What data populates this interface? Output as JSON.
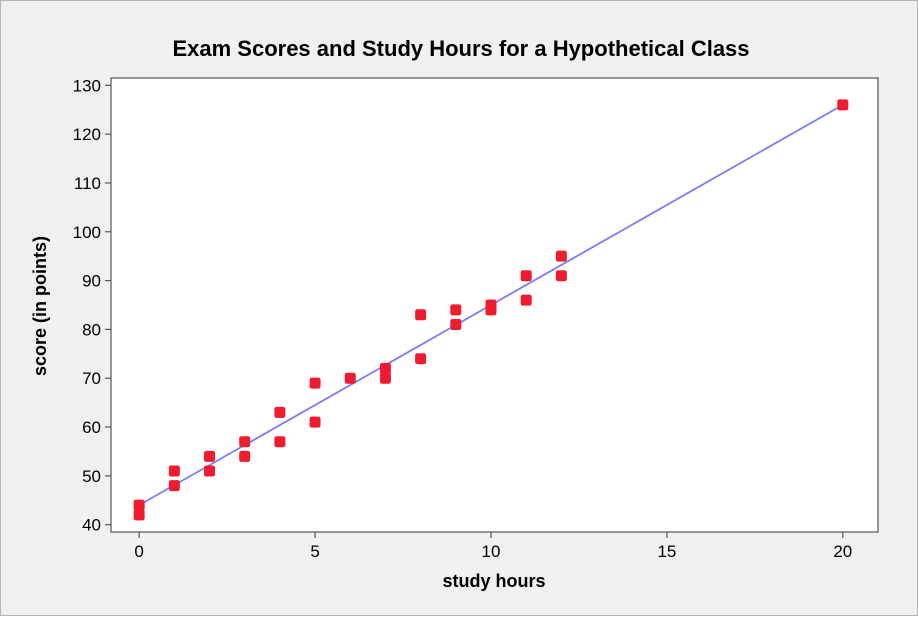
{
  "chart_data": {
    "type": "scatter",
    "title": "Exam Scores and Study Hours for a Hypothetical Class",
    "xlabel": "study hours",
    "ylabel": "score (in points)",
    "xlim": [
      -0.8,
      21.0
    ],
    "ylim": [
      38.5,
      131.5
    ],
    "x_ticks": [
      0,
      5,
      10,
      15,
      20
    ],
    "y_ticks": [
      40,
      50,
      60,
      70,
      80,
      90,
      100,
      110,
      120,
      130
    ],
    "grid": false,
    "legend": "none",
    "series": [
      {
        "color": "#ee1c2e",
        "points": [
          [
            0,
            42
          ],
          [
            0,
            44
          ],
          [
            1,
            48
          ],
          [
            1,
            51
          ],
          [
            2,
            51
          ],
          [
            2,
            54
          ],
          [
            3,
            54
          ],
          [
            3,
            57
          ],
          [
            4,
            57
          ],
          [
            4,
            63
          ],
          [
            5,
            61
          ],
          [
            5,
            69
          ],
          [
            6,
            70
          ],
          [
            7,
            70
          ],
          [
            7,
            72
          ],
          [
            8,
            74
          ],
          [
            8,
            83
          ],
          [
            9,
            81
          ],
          [
            9,
            84
          ],
          [
            10,
            84
          ],
          [
            10,
            85
          ],
          [
            11,
            86
          ],
          [
            11,
            91
          ],
          [
            12,
            91
          ],
          [
            12,
            95
          ],
          [
            20,
            126
          ]
        ]
      }
    ],
    "fit_line": {
      "color": "#7b7bff",
      "x": [
        0,
        20
      ],
      "y": [
        44,
        126
      ]
    },
    "colors": {
      "frame_background": "#f0f0f0",
      "plot_background": "#ffffff",
      "axis": "#555555"
    }
  }
}
